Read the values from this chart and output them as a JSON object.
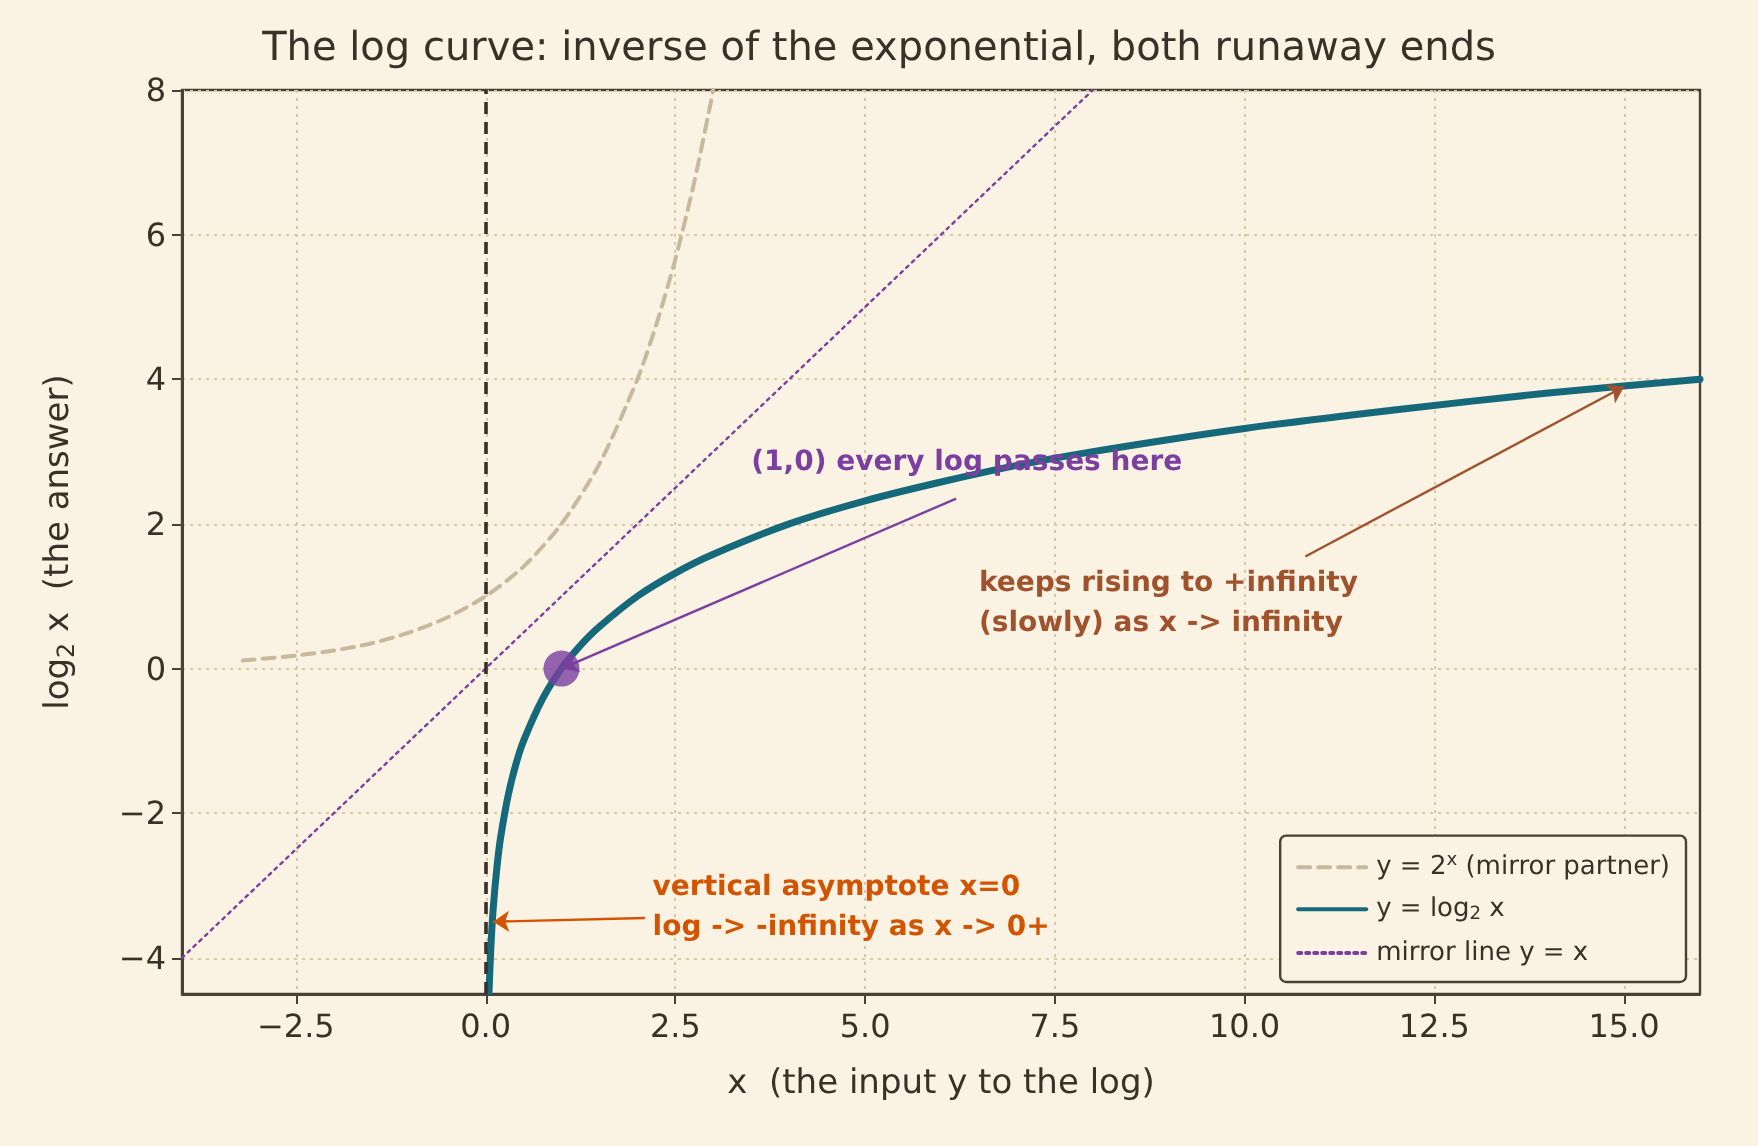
{
  "chart_data": {
    "type": "line",
    "title": "The log curve: inverse of the exponential, both runaway ends",
    "xlabel": "x  (the input y to the log)",
    "ylabel": "log$_{2}$ x  (the answer)",
    "xlim": [
      -4,
      16
    ],
    "ylim": [
      -4.5,
      8
    ],
    "xticks": [
      {
        "value": -2.5,
        "label": "−2.5"
      },
      {
        "value": 0,
        "label": "0.0"
      },
      {
        "value": 2.5,
        "label": "2.5"
      },
      {
        "value": 5,
        "label": "5.0"
      },
      {
        "value": 7.5,
        "label": "7.5"
      },
      {
        "value": 10,
        "label": "10.0"
      },
      {
        "value": 12.5,
        "label": "12.5"
      },
      {
        "value": 15,
        "label": "15.0"
      }
    ],
    "yticks": [
      {
        "value": -4,
        "label": "−4"
      },
      {
        "value": -2,
        "label": "−2"
      },
      0,
      2,
      4,
      6,
      8
    ],
    "grid": true,
    "legend": "bottom right",
    "marker": "none",
    "series": [
      {
        "name": "y = 2$^{x}$ (mirror partner)",
        "color": "#c8b99c",
        "line_style": "dashed",
        "x": [
          -3.2,
          -2.5,
          -2,
          -1.5,
          -1,
          -0.5,
          0,
          0.5,
          1,
          1.5,
          2,
          2.25,
          2.5,
          2.75,
          3
        ],
        "values": [
          0.11,
          0.18,
          0.25,
          0.35,
          0.5,
          0.71,
          1,
          1.41,
          2,
          2.83,
          4,
          4.76,
          5.66,
          6.73,
          8
        ]
      },
      {
        "name": "y = log$_{2}$ x",
        "color": "#16697a",
        "line_style": "solid",
        "x": [
          0.045,
          0.07,
          0.1,
          0.15,
          0.2,
          0.3,
          0.4,
          0.5,
          0.75,
          1,
          1.25,
          1.5,
          2,
          2.5,
          3,
          4,
          5,
          6,
          7,
          8,
          10,
          12,
          14,
          16
        ],
        "values": [
          -4.47,
          -3.84,
          -3.32,
          -2.74,
          -2.32,
          -1.74,
          -1.32,
          -1,
          -0.42,
          0,
          0.32,
          0.58,
          1,
          1.32,
          1.58,
          2,
          2.32,
          2.58,
          2.81,
          3,
          3.32,
          3.58,
          3.81,
          4
        ]
      },
      {
        "name": "mirror line y = x",
        "color": "#7b3fa0",
        "line_style": "dotted",
        "x": [
          -4,
          8
        ],
        "values": [
          -4,
          8
        ]
      },
      {
        "type": "scatter",
        "marker": "circle",
        "color": "#7b3fa0",
        "x": [
          1
        ],
        "values": [
          0
        ]
      }
    ],
    "ref_lines": [
      {
        "axis": "x",
        "value": 0,
        "label": null,
        "color": "#3a3028",
        "line_style": "dashed"
      }
    ],
    "annotations": [
      {
        "text": "(1,0) every log passes here",
        "x": 1,
        "y": 0
      },
      {
        "text": "keeps rising to +infinity\n(slowly) as x -> infinity",
        "x": 15,
        "y": 3.9
      },
      {
        "text": "vertical asymptote x=0\nlog -> -infinity as x -> 0+",
        "x": 0.1,
        "y": -3.5
      }
    ]
  }
}
